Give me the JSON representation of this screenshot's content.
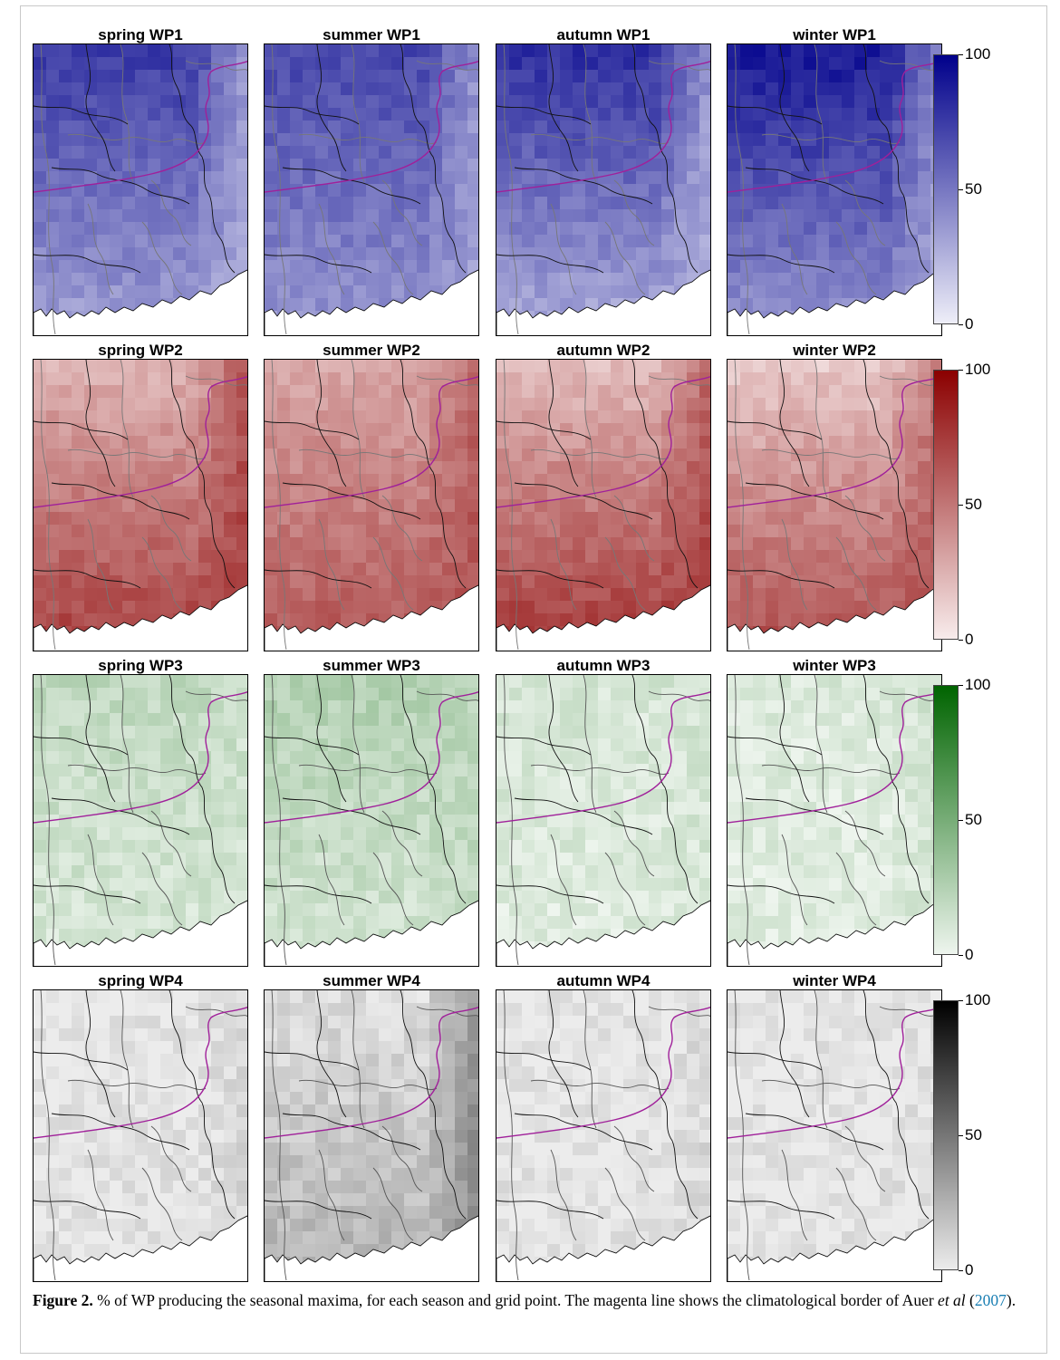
{
  "figure": {
    "label": "Figure 2.",
    "caption_text": " % of WP producing the seasonal maxima, for each season and grid point. The magenta line shows the climatological border of Auer ",
    "caption_etal": "et al",
    "caption_open": " (",
    "caption_year": "2007",
    "caption_close": ")."
  },
  "rows": [
    {
      "wp": "WP1",
      "color_high": "#00008b",
      "color_low": "#eeeef8",
      "panels": [
        {
          "title": "spring WP1",
          "intensity_north": 0.75,
          "intensity_south": 0.3,
          "intensity_east": 0.2
        },
        {
          "title": "summer WP1",
          "intensity_north": 0.7,
          "intensity_south": 0.35,
          "intensity_east": 0.25
        },
        {
          "title": "autumn WP1",
          "intensity_north": 0.8,
          "intensity_south": 0.25,
          "intensity_east": 0.2
        },
        {
          "title": "winter WP1",
          "intensity_north": 0.9,
          "intensity_south": 0.35,
          "intensity_east": 0.2
        }
      ],
      "ticks": [
        "100",
        "50",
        "0"
      ]
    },
    {
      "wp": "WP2",
      "color_high": "#8b0000",
      "color_low": "#f8ecec",
      "panels": [
        {
          "title": "spring WP2",
          "intensity_north": 0.25,
          "intensity_south": 0.75,
          "intensity_east": 0.8
        },
        {
          "title": "summer WP2",
          "intensity_north": 0.3,
          "intensity_south": 0.65,
          "intensity_east": 0.7
        },
        {
          "title": "autumn WP2",
          "intensity_north": 0.2,
          "intensity_south": 0.8,
          "intensity_east": 0.75
        },
        {
          "title": "winter WP2",
          "intensity_north": 0.15,
          "intensity_south": 0.7,
          "intensity_east": 0.7
        }
      ],
      "ticks": [
        "100",
        "50",
        "0"
      ]
    },
    {
      "wp": "WP3",
      "color_high": "#006400",
      "color_low": "#eef5ee",
      "panels": [
        {
          "title": "spring WP3",
          "intensity_north": 0.2,
          "intensity_south": 0.08,
          "intensity_east": 0.12
        },
        {
          "title": "summer WP3",
          "intensity_north": 0.25,
          "intensity_south": 0.1,
          "intensity_east": 0.2
        },
        {
          "title": "autumn WP3",
          "intensity_north": 0.1,
          "intensity_south": 0.06,
          "intensity_east": 0.12
        },
        {
          "title": "winter WP3",
          "intensity_north": 0.08,
          "intensity_south": 0.05,
          "intensity_east": 0.15
        }
      ],
      "ticks": [
        "100",
        "50",
        "0"
      ]
    },
    {
      "wp": "WP4",
      "color_high": "#000000",
      "color_low": "#ececec",
      "panels": [
        {
          "title": "spring WP4",
          "intensity_north": 0.02,
          "intensity_south": 0.04,
          "intensity_east": 0.12
        },
        {
          "title": "summer WP4",
          "intensity_north": 0.06,
          "intensity_south": 0.25,
          "intensity_east": 0.5
        },
        {
          "title": "autumn WP4",
          "intensity_north": 0.02,
          "intensity_south": 0.03,
          "intensity_east": 0.1
        },
        {
          "title": "winter WP4",
          "intensity_north": 0.02,
          "intensity_south": 0.03,
          "intensity_east": 0.08
        }
      ],
      "ticks": [
        "100",
        "50",
        "0"
      ]
    }
  ],
  "border_color": "#a0209a"
}
